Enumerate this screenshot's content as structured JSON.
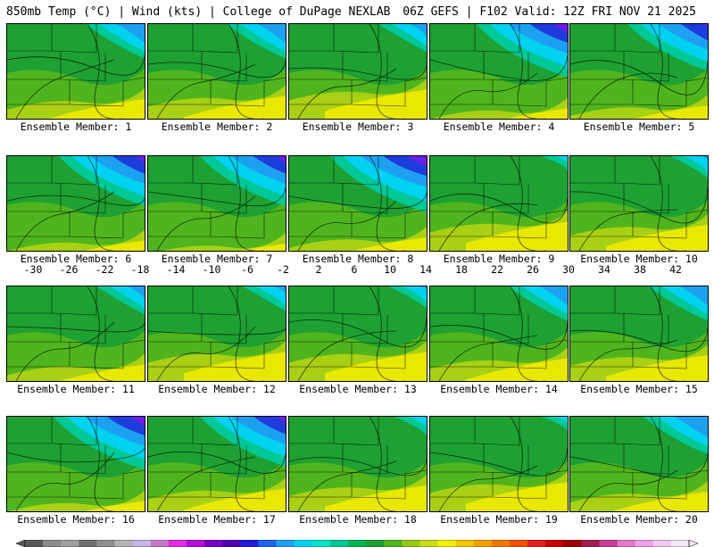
{
  "header": {
    "left": "850mb Temp (°C) | Wind (kts) | College of DuPage NEXLAB",
    "right": "06Z GEFS | F102 Valid: 12Z FRI NOV 21 2025"
  },
  "panels": [
    {
      "label": "Ensemble Member: 1",
      "cold": 0.55,
      "warm": 0.4
    },
    {
      "label": "Ensemble Member: 2",
      "cold": 0.55,
      "warm": 0.45
    },
    {
      "label": "Ensemble Member: 3",
      "cold": 0.45,
      "warm": 0.55
    },
    {
      "label": "Ensemble Member: 4",
      "cold": 0.85,
      "warm": 0.25
    },
    {
      "label": "Ensemble Member: 5",
      "cold": 0.75,
      "warm": 0.3
    },
    {
      "label": "Ensemble Member: 6",
      "cold": 0.8,
      "warm": 0.25
    },
    {
      "label": "Ensemble Member: 7",
      "cold": 0.8,
      "warm": 0.2
    },
    {
      "label": "Ensemble Member: 8",
      "cold": 0.9,
      "warm": 0.3
    },
    {
      "label": "Ensemble Member: 9",
      "cold": 0.25,
      "warm": 0.55
    },
    {
      "label": "Ensemble Member: 10",
      "cold": 0.35,
      "warm": 0.5
    },
    {
      "label": "Ensemble Member: 11",
      "cold": 0.45,
      "warm": 0.35
    },
    {
      "label": "Ensemble Member: 12",
      "cold": 0.4,
      "warm": 0.55
    },
    {
      "label": "Ensemble Member: 13",
      "cold": 0.35,
      "warm": 0.55
    },
    {
      "label": "Ensemble Member: 14",
      "cold": 0.55,
      "warm": 0.45
    },
    {
      "label": "Ensemble Member: 15",
      "cold": 0.55,
      "warm": 0.5
    },
    {
      "label": "Ensemble Member: 16",
      "cold": 0.85,
      "warm": 0.25
    },
    {
      "label": "Ensemble Member: 17",
      "cold": 0.8,
      "warm": 0.45
    },
    {
      "label": "Ensemble Member: 18",
      "cold": 0.3,
      "warm": 0.5
    },
    {
      "label": "Ensemble Member: 19",
      "cold": 0.25,
      "warm": 0.55
    },
    {
      "label": "Ensemble Member: 20",
      "cold": 0.6,
      "warm": 0.4
    }
  ],
  "colorbar": {
    "ticks": [
      "-30",
      "-26",
      "-22",
      "-18",
      "-14",
      "-10",
      "-6",
      "-2",
      "2",
      "6",
      "10",
      "14",
      "18",
      "22",
      "26",
      "30",
      "34",
      "38",
      "42"
    ],
    "colors": [
      "#5a5a5a",
      "#8c8c8c",
      "#a0a0a0",
      "#707070",
      "#909090",
      "#b4b4b4",
      "#c8b4e6",
      "#c878c8",
      "#e628e6",
      "#b40fdc",
      "#7800c8",
      "#5000b4",
      "#1e1edc",
      "#1e64f0",
      "#1ea0f0",
      "#00d2f0",
      "#00e6c8",
      "#00c896",
      "#00b450",
      "#1ea032",
      "#50b41e",
      "#96c814",
      "#c8dc14",
      "#f0f000",
      "#f0c800",
      "#f0a000",
      "#f07800",
      "#f05000",
      "#e61e1e",
      "#c80000",
      "#a00000",
      "#a01e50",
      "#c83c96",
      "#e678c8",
      "#f0a0e6",
      "#f0c8f0",
      "#f5e6f5"
    ],
    "temp_colors": {
      "very_cold": "#6a1ee6",
      "cold": "#1e3cdc",
      "cool": "#1ea0f0",
      "mild": "#00d2f0",
      "neutral": "#00c896",
      "green": "#1ea032",
      "light_green": "#50b41e",
      "yellow_green": "#a8d014",
      "warm": "#e8e800"
    }
  }
}
